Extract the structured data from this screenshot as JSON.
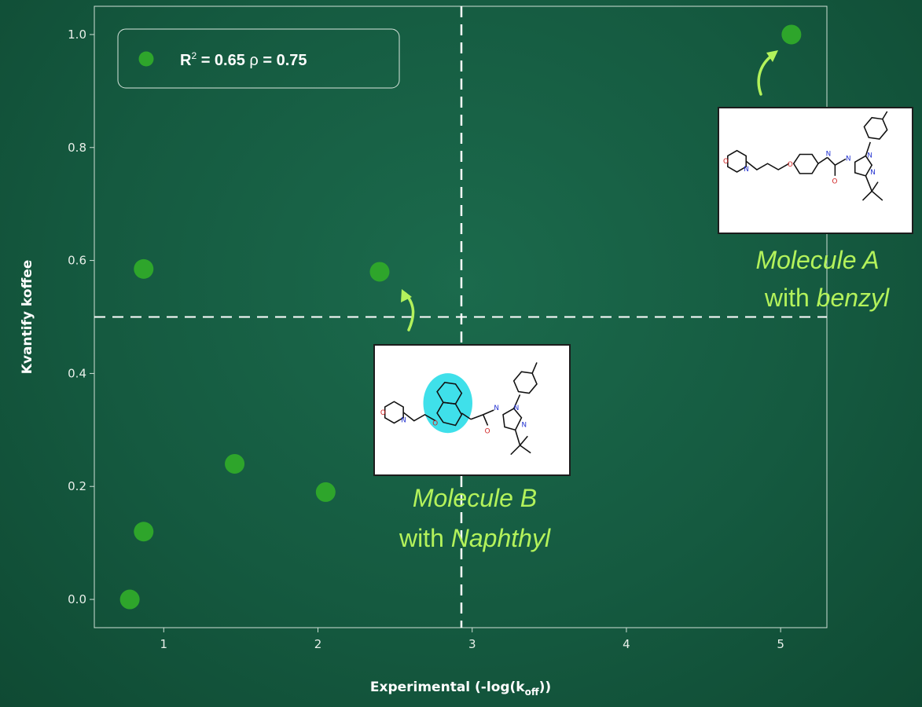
{
  "chart_data": {
    "type": "scatter",
    "xlabel": "Experimental (-log(k",
    "xlabel_sub": "off",
    "xlabel_tail": "))",
    "ylabel": "Kvantify koffee",
    "xlim": [
      0.55,
      5.3
    ],
    "ylim": [
      -0.05,
      1.05
    ],
    "x_ticks": [
      "1",
      "2",
      "3",
      "4",
      "5"
    ],
    "y_ticks": [
      "0.0",
      "0.2",
      "0.4",
      "0.6",
      "0.8",
      "1.0"
    ],
    "grid": false,
    "series": [
      {
        "color": "#2ea52b",
        "x": [
          0.78,
          0.87,
          0.87,
          1.46,
          2.05,
          2.4,
          5.07
        ],
        "y": [
          0.0,
          0.12,
          0.585,
          0.24,
          0.19,
          0.58,
          1.0
        ]
      }
    ],
    "thresholds": {
      "x": 2.93,
      "y": 0.5
    },
    "legend": {
      "r2_prefix": "R",
      "r2_sup": "2",
      "r2_value": " = 0.65 ",
      "rho_symbol": "ρ",
      "rho_value": " = 0.75",
      "placement": "top-left"
    },
    "annotations": [
      {
        "name": "molecule-a",
        "line1": "Molecule A",
        "line2_prefix": "with ",
        "line2_italic": "benzyl"
      },
      {
        "name": "molecule-b",
        "line1": "Molecule B",
        "line2_prefix": "with ",
        "line2_italic": "Naphthyl"
      }
    ]
  },
  "colors": {
    "background": "#155a40",
    "point": "#2ea52b",
    "annotation": "#b3f25b",
    "highlight": "#3fe0ea"
  }
}
